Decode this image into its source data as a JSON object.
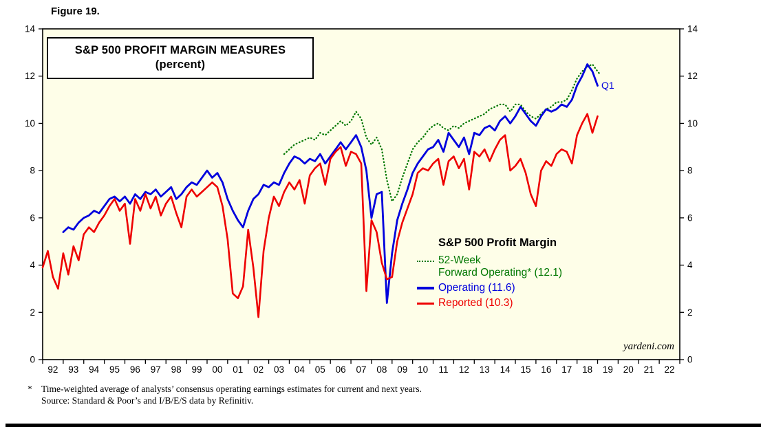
{
  "figure_label": "Figure 19.",
  "title_box": {
    "line1": "S&P 500 PROFIT MARGIN MEASURES",
    "line2": "(percent)"
  },
  "annotations": {
    "q1": "Q1"
  },
  "watermark": "yardeni.com",
  "legend": {
    "heading": "S&P 500 Profit Margin",
    "items": [
      {
        "label_line1": "52-Week",
        "label_line2": "Forward Operating* (12.1)"
      },
      {
        "label": "Operating (11.6)"
      },
      {
        "label": "Reported (10.3)"
      }
    ]
  },
  "footnote": {
    "symbol": "*",
    "line1": "Time-weighted average of analysts’ consensus operating earnings estimates for current and next years.",
    "line2": "Source: Standard & Poor’s and I/B/E/S data by Refinitiv."
  },
  "chart_data": {
    "type": "line",
    "title": "S&P 500 PROFIT MARGIN MEASURES (percent)",
    "xlabel": "",
    "ylabel": "percent",
    "xlim": [
      1992,
      2023
    ],
    "ylim": [
      0,
      14
    ],
    "y_ticks": [
      0,
      2,
      4,
      6,
      8,
      10,
      12,
      14
    ],
    "x_tick_labels": [
      "92",
      "93",
      "94",
      "95",
      "96",
      "97",
      "98",
      "99",
      "00",
      "01",
      "02",
      "03",
      "04",
      "05",
      "06",
      "07",
      "08",
      "09",
      "10",
      "11",
      "12",
      "13",
      "14",
      "15",
      "16",
      "17",
      "18",
      "19",
      "20",
      "21",
      "22"
    ],
    "grid": false,
    "legend_position": "inside lower-right",
    "plot_bg": "#fefee8",
    "axis_color": "#000000",
    "series": [
      {
        "id": "forward",
        "name": "52-Week Forward Operating",
        "latest_value": 12.1,
        "color": "#007700",
        "line_style": "dotted",
        "width": 2.3,
        "points": [
          [
            2003.75,
            8.7
          ],
          [
            2004,
            8.9
          ],
          [
            2004.25,
            9.1
          ],
          [
            2004.5,
            9.2
          ],
          [
            2004.75,
            9.3
          ],
          [
            2005,
            9.4
          ],
          [
            2005.25,
            9.3
          ],
          [
            2005.5,
            9.6
          ],
          [
            2005.75,
            9.5
          ],
          [
            2006,
            9.7
          ],
          [
            2006.25,
            9.9
          ],
          [
            2006.5,
            10.1
          ],
          [
            2006.75,
            9.9
          ],
          [
            2007,
            10.1
          ],
          [
            2007.25,
            10.5
          ],
          [
            2007.5,
            10.2
          ],
          [
            2007.75,
            9.4
          ],
          [
            2008,
            9.1
          ],
          [
            2008.25,
            9.4
          ],
          [
            2008.5,
            8.9
          ],
          [
            2008.75,
            7.6
          ],
          [
            2009,
            6.7
          ],
          [
            2009.25,
            7.0
          ],
          [
            2009.5,
            7.7
          ],
          [
            2009.75,
            8.3
          ],
          [
            2010,
            8.9
          ],
          [
            2010.25,
            9.2
          ],
          [
            2010.5,
            9.4
          ],
          [
            2010.75,
            9.7
          ],
          [
            2011,
            9.9
          ],
          [
            2011.25,
            10.0
          ],
          [
            2011.5,
            9.8
          ],
          [
            2011.75,
            9.7
          ],
          [
            2012,
            9.9
          ],
          [
            2012.25,
            9.8
          ],
          [
            2012.5,
            10.0
          ],
          [
            2012.75,
            10.1
          ],
          [
            2013,
            10.2
          ],
          [
            2013.25,
            10.3
          ],
          [
            2013.5,
            10.4
          ],
          [
            2013.75,
            10.6
          ],
          [
            2014,
            10.7
          ],
          [
            2014.25,
            10.8
          ],
          [
            2014.5,
            10.8
          ],
          [
            2014.75,
            10.5
          ],
          [
            2015,
            10.8
          ],
          [
            2015.25,
            10.8
          ],
          [
            2015.5,
            10.5
          ],
          [
            2015.75,
            10.3
          ],
          [
            2016,
            10.2
          ],
          [
            2016.25,
            10.4
          ],
          [
            2016.5,
            10.6
          ],
          [
            2016.75,
            10.7
          ],
          [
            2017,
            10.9
          ],
          [
            2017.25,
            10.9
          ],
          [
            2017.5,
            11.0
          ],
          [
            2017.75,
            11.4
          ],
          [
            2018,
            11.9
          ],
          [
            2018.25,
            12.2
          ],
          [
            2018.5,
            12.4
          ],
          [
            2018.75,
            12.5
          ],
          [
            2019,
            12.2
          ],
          [
            2019.1,
            12.1
          ]
        ]
      },
      {
        "id": "operating",
        "name": "Operating",
        "latest_value": 11.6,
        "color": "#0000dd",
        "line_style": "solid",
        "width": 2.8,
        "points": [
          [
            1993,
            5.4
          ],
          [
            1993.25,
            5.6
          ],
          [
            1993.5,
            5.5
          ],
          [
            1993.75,
            5.8
          ],
          [
            1994,
            6.0
          ],
          [
            1994.25,
            6.1
          ],
          [
            1994.5,
            6.3
          ],
          [
            1994.75,
            6.2
          ],
          [
            1995,
            6.5
          ],
          [
            1995.25,
            6.8
          ],
          [
            1995.5,
            6.9
          ],
          [
            1995.75,
            6.7
          ],
          [
            1996,
            6.9
          ],
          [
            1996.25,
            6.6
          ],
          [
            1996.5,
            7.0
          ],
          [
            1996.75,
            6.8
          ],
          [
            1997,
            7.1
          ],
          [
            1997.25,
            7.0
          ],
          [
            1997.5,
            7.2
          ],
          [
            1997.75,
            6.9
          ],
          [
            1998,
            7.1
          ],
          [
            1998.25,
            7.3
          ],
          [
            1998.5,
            6.8
          ],
          [
            1998.75,
            7.0
          ],
          [
            1999,
            7.3
          ],
          [
            1999.25,
            7.5
          ],
          [
            1999.5,
            7.4
          ],
          [
            1999.75,
            7.7
          ],
          [
            2000,
            8.0
          ],
          [
            2000.25,
            7.7
          ],
          [
            2000.5,
            7.9
          ],
          [
            2000.75,
            7.5
          ],
          [
            2001,
            6.8
          ],
          [
            2001.25,
            6.3
          ],
          [
            2001.5,
            5.9
          ],
          [
            2001.75,
            5.6
          ],
          [
            2002,
            6.3
          ],
          [
            2002.25,
            6.8
          ],
          [
            2002.5,
            7.0
          ],
          [
            2002.75,
            7.4
          ],
          [
            2003,
            7.3
          ],
          [
            2003.25,
            7.5
          ],
          [
            2003.5,
            7.4
          ],
          [
            2003.75,
            7.9
          ],
          [
            2004,
            8.3
          ],
          [
            2004.25,
            8.6
          ],
          [
            2004.5,
            8.5
          ],
          [
            2004.75,
            8.3
          ],
          [
            2005,
            8.5
          ],
          [
            2005.25,
            8.4
          ],
          [
            2005.5,
            8.7
          ],
          [
            2005.75,
            8.3
          ],
          [
            2006,
            8.6
          ],
          [
            2006.25,
            8.9
          ],
          [
            2006.5,
            9.2
          ],
          [
            2006.75,
            8.9
          ],
          [
            2007,
            9.2
          ],
          [
            2007.25,
            9.5
          ],
          [
            2007.5,
            9.0
          ],
          [
            2007.75,
            8.0
          ],
          [
            2008,
            6.0
          ],
          [
            2008.25,
            7.0
          ],
          [
            2008.5,
            7.1
          ],
          [
            2008.75,
            2.4
          ],
          [
            2009,
            4.5
          ],
          [
            2009.25,
            5.9
          ],
          [
            2009.5,
            6.6
          ],
          [
            2009.75,
            7.2
          ],
          [
            2010,
            7.9
          ],
          [
            2010.25,
            8.3
          ],
          [
            2010.5,
            8.6
          ],
          [
            2010.75,
            8.9
          ],
          [
            2011,
            9.0
          ],
          [
            2011.25,
            9.3
          ],
          [
            2011.5,
            8.8
          ],
          [
            2011.75,
            9.6
          ],
          [
            2012,
            9.3
          ],
          [
            2012.25,
            9.0
          ],
          [
            2012.5,
            9.4
          ],
          [
            2012.75,
            8.7
          ],
          [
            2013,
            9.6
          ],
          [
            2013.25,
            9.5
          ],
          [
            2013.5,
            9.8
          ],
          [
            2013.75,
            9.9
          ],
          [
            2014,
            9.7
          ],
          [
            2014.25,
            10.1
          ],
          [
            2014.5,
            10.3
          ],
          [
            2014.75,
            10.0
          ],
          [
            2015,
            10.3
          ],
          [
            2015.25,
            10.7
          ],
          [
            2015.5,
            10.4
          ],
          [
            2015.75,
            10.1
          ],
          [
            2016,
            9.9
          ],
          [
            2016.25,
            10.3
          ],
          [
            2016.5,
            10.6
          ],
          [
            2016.75,
            10.5
          ],
          [
            2017,
            10.6
          ],
          [
            2017.25,
            10.8
          ],
          [
            2017.5,
            10.7
          ],
          [
            2017.75,
            11.0
          ],
          [
            2018,
            11.6
          ],
          [
            2018.25,
            12.0
          ],
          [
            2018.5,
            12.5
          ],
          [
            2018.75,
            12.2
          ],
          [
            2019,
            11.6
          ]
        ]
      },
      {
        "id": "reported",
        "name": "Reported",
        "latest_value": 10.3,
        "color": "#ee0000",
        "line_style": "solid",
        "width": 2.6,
        "points": [
          [
            1992,
            3.9
          ],
          [
            1992.25,
            4.6
          ],
          [
            1992.5,
            3.5
          ],
          [
            1992.75,
            3.0
          ],
          [
            1993,
            4.5
          ],
          [
            1993.25,
            3.6
          ],
          [
            1993.5,
            4.8
          ],
          [
            1993.75,
            4.2
          ],
          [
            1994,
            5.3
          ],
          [
            1994.25,
            5.6
          ],
          [
            1994.5,
            5.4
          ],
          [
            1994.75,
            5.8
          ],
          [
            1995,
            6.1
          ],
          [
            1995.25,
            6.5
          ],
          [
            1995.5,
            6.8
          ],
          [
            1995.75,
            6.3
          ],
          [
            1996,
            6.6
          ],
          [
            1996.25,
            4.9
          ],
          [
            1996.5,
            6.8
          ],
          [
            1996.75,
            6.3
          ],
          [
            1997,
            7.0
          ],
          [
            1997.25,
            6.4
          ],
          [
            1997.5,
            6.9
          ],
          [
            1997.75,
            6.1
          ],
          [
            1998,
            6.6
          ],
          [
            1998.25,
            6.9
          ],
          [
            1998.5,
            6.2
          ],
          [
            1998.75,
            5.6
          ],
          [
            1999,
            6.9
          ],
          [
            1999.25,
            7.2
          ],
          [
            1999.5,
            6.9
          ],
          [
            1999.75,
            7.1
          ],
          [
            2000,
            7.3
          ],
          [
            2000.25,
            7.5
          ],
          [
            2000.5,
            7.3
          ],
          [
            2000.75,
            6.5
          ],
          [
            2001,
            5.1
          ],
          [
            2001.25,
            2.8
          ],
          [
            2001.5,
            2.6
          ],
          [
            2001.75,
            3.1
          ],
          [
            2002,
            5.5
          ],
          [
            2002.25,
            3.9
          ],
          [
            2002.5,
            1.8
          ],
          [
            2002.75,
            4.6
          ],
          [
            2003,
            6.0
          ],
          [
            2003.25,
            6.9
          ],
          [
            2003.5,
            6.5
          ],
          [
            2003.75,
            7.1
          ],
          [
            2004,
            7.5
          ],
          [
            2004.25,
            7.2
          ],
          [
            2004.5,
            7.6
          ],
          [
            2004.75,
            6.6
          ],
          [
            2005,
            7.8
          ],
          [
            2005.25,
            8.1
          ],
          [
            2005.5,
            8.3
          ],
          [
            2005.75,
            7.4
          ],
          [
            2006,
            8.5
          ],
          [
            2006.25,
            8.8
          ],
          [
            2006.5,
            9.0
          ],
          [
            2006.75,
            8.2
          ],
          [
            2007,
            8.8
          ],
          [
            2007.25,
            8.7
          ],
          [
            2007.5,
            8.3
          ],
          [
            2007.75,
            2.9
          ],
          [
            2008,
            5.9
          ],
          [
            2008.25,
            5.4
          ],
          [
            2008.5,
            4.1
          ],
          [
            2008.75,
            3.4
          ],
          [
            2009,
            3.5
          ],
          [
            2009.25,
            5.0
          ],
          [
            2009.5,
            5.8
          ],
          [
            2009.75,
            6.4
          ],
          [
            2010,
            7.0
          ],
          [
            2010.25,
            7.9
          ],
          [
            2010.5,
            8.1
          ],
          [
            2010.75,
            8.0
          ],
          [
            2011,
            8.3
          ],
          [
            2011.25,
            8.5
          ],
          [
            2011.5,
            7.4
          ],
          [
            2011.75,
            8.4
          ],
          [
            2012,
            8.6
          ],
          [
            2012.25,
            8.1
          ],
          [
            2012.5,
            8.5
          ],
          [
            2012.75,
            7.2
          ],
          [
            2013,
            8.8
          ],
          [
            2013.25,
            8.6
          ],
          [
            2013.5,
            8.9
          ],
          [
            2013.75,
            8.4
          ],
          [
            2014,
            8.9
          ],
          [
            2014.25,
            9.3
          ],
          [
            2014.5,
            9.5
          ],
          [
            2014.75,
            8.0
          ],
          [
            2015,
            8.2
          ],
          [
            2015.25,
            8.5
          ],
          [
            2015.5,
            7.9
          ],
          [
            2015.75,
            7.0
          ],
          [
            2016,
            6.5
          ],
          [
            2016.25,
            8.0
          ],
          [
            2016.5,
            8.4
          ],
          [
            2016.75,
            8.2
          ],
          [
            2017,
            8.7
          ],
          [
            2017.25,
            8.9
          ],
          [
            2017.5,
            8.8
          ],
          [
            2017.75,
            8.3
          ],
          [
            2018,
            9.5
          ],
          [
            2018.25,
            10.0
          ],
          [
            2018.5,
            10.4
          ],
          [
            2018.75,
            9.6
          ],
          [
            2019,
            10.3
          ]
        ]
      }
    ]
  }
}
